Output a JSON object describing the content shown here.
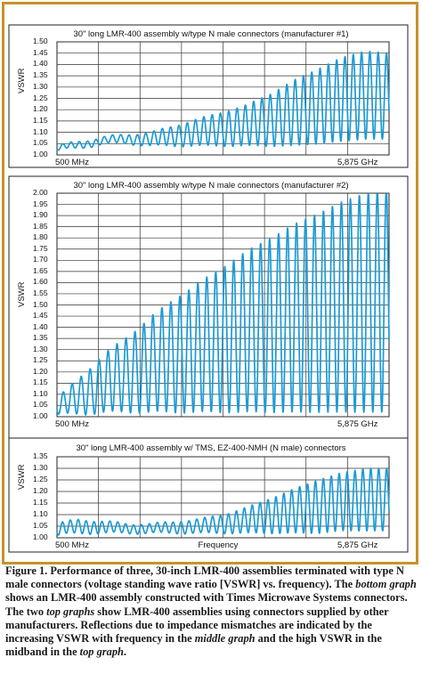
{
  "chart_data": [
    {
      "type": "line",
      "title": "30\" long LMR-400 assembly w/type N male connectors (manufacturer #1)",
      "ylabel": "VSWR",
      "xlabel": "",
      "x_tick_labels": [
        "500 MHz",
        "5,875 GHz"
      ],
      "x_range_mhz": [
        500,
        5875
      ],
      "yticks": [
        "1.00",
        "1.05",
        "1.10",
        "1.15",
        "1.20",
        "1.25",
        "1.30",
        "1.35",
        "1.40",
        "1.45",
        "1.50"
      ],
      "ylim": [
        1.0,
        1.5
      ],
      "grid": true,
      "series": [
        {
          "color": "#1a9bd7",
          "ripple_count": 40,
          "envelope_peak": [
            1.04,
            1.06,
            1.08,
            1.09,
            1.1,
            1.13,
            1.16,
            1.19,
            1.22,
            1.27,
            1.33,
            1.38,
            1.43,
            1.46,
            1.45
          ],
          "envelope_floor": [
            1.02,
            1.03,
            1.05,
            1.05,
            1.04,
            1.04,
            1.04,
            1.04,
            1.04,
            1.04,
            1.04,
            1.05,
            1.06,
            1.07,
            1.07
          ]
        }
      ]
    },
    {
      "type": "line",
      "title": "30\" long LMR-400 assembly w/type N male connectors (manufacturer #2)",
      "ylabel": "VSWR",
      "xlabel": "",
      "x_tick_labels": [
        "500 MHz",
        "5,875 GHz"
      ],
      "x_range_mhz": [
        500,
        5875
      ],
      "yticks": [
        "1.00",
        "1.05",
        "1.10",
        "1.15",
        "1.20",
        "1.25",
        "1.30",
        "1.35",
        "1.40",
        "1.45",
        "1.50",
        "1.55",
        "1.60",
        "1.65",
        "1.70",
        "1.75",
        "1.80",
        "1.85",
        "1.90",
        "1.95",
        "2.00"
      ],
      "ylim": [
        1.0,
        2.0
      ],
      "grid": true,
      "series": [
        {
          "color": "#1a9bd7",
          "ripple_count": 37,
          "envelope_peak": [
            1.08,
            1.18,
            1.28,
            1.36,
            1.45,
            1.53,
            1.6,
            1.67,
            1.74,
            1.8,
            1.86,
            1.91,
            1.96,
            2.0,
            2.02
          ],
          "envelope_floor": [
            1.01,
            1.01,
            1.02,
            1.02,
            1.02,
            1.02,
            1.02,
            1.02,
            1.02,
            1.02,
            1.02,
            1.02,
            1.02,
            1.02,
            1.02
          ]
        }
      ]
    },
    {
      "type": "line",
      "title": "30\" long LMR-400 assembly w/ TMS, EZ-400-NMH (N male) connectors",
      "ylabel": "VSWR",
      "xlabel": "Frequency",
      "x_tick_labels": [
        "500 MHz",
        "5,875 GHz"
      ],
      "x_range_mhz": [
        500,
        5875
      ],
      "yticks": [
        "1.00",
        "1.05",
        "1.10",
        "1.15",
        "1.20",
        "1.25",
        "1.30",
        "1.35"
      ],
      "ylim": [
        1.0,
        1.35
      ],
      "grid": true,
      "series": [
        {
          "color": "#1a9bd7",
          "ripple_count": 42,
          "envelope_peak": [
            1.06,
            1.08,
            1.07,
            1.06,
            1.06,
            1.07,
            1.08,
            1.1,
            1.13,
            1.17,
            1.21,
            1.25,
            1.28,
            1.3,
            1.3
          ],
          "envelope_floor": [
            1.01,
            1.02,
            1.02,
            1.02,
            1.02,
            1.02,
            1.02,
            1.02,
            1.02,
            1.02,
            1.02,
            1.02,
            1.03,
            1.03,
            1.03
          ]
        }
      ]
    }
  ],
  "caption": {
    "lead": "Figure 1. Performance of three, 30-inch LMR-400 assemblies terminated with type N male connectors (voltage standing wave ratio [VSWR] vs. frequency). The ",
    "em1": "bottom graph",
    "mid1": " shows an LMR-400 assembly constructed with Times Microwave Systems connectors. The two ",
    "em2": "top graphs",
    "mid2": " show LMR-400 assemblies using connectors supplied by other manufacturers. Reflections due to impedance mismatches are indicated by the increasing VSWR with frequency in the ",
    "em3": "middle graph",
    "tail": " and the high VSWR in the midband in the ",
    "em4": "top graph",
    "end": "."
  }
}
